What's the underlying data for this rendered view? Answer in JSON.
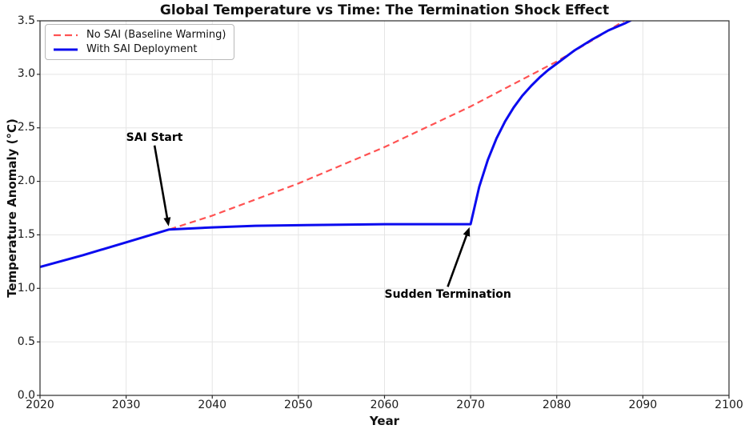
{
  "chart_data": {
    "type": "line",
    "title": "Global Temperature vs Time: The Termination Shock Effect",
    "xlabel": "Year",
    "ylabel": "Temperature Anomaly (°C)",
    "xlim": [
      2020,
      2100
    ],
    "ylim": [
      0.0,
      3.5
    ],
    "xticks": [
      2020,
      2030,
      2040,
      2050,
      2060,
      2070,
      2080,
      2090,
      2100
    ],
    "xtick_labels": [
      "2020",
      "2030",
      "2040",
      "2050",
      "2060",
      "2070",
      "2080",
      "2090",
      "2100"
    ],
    "yticks": [
      0.0,
      0.5,
      1.0,
      1.5,
      2.0,
      2.5,
      3.0,
      3.5
    ],
    "ytick_labels": [
      "0.0",
      "0.5",
      "1.0",
      "1.5",
      "2.0",
      "2.5",
      "3.0",
      "3.5"
    ],
    "grid": true,
    "legend_position": "upper-left",
    "series": [
      {
        "name": "No SAI (Baseline Warming)",
        "color": "#ff5252",
        "style": "dashed",
        "line_width": 2.2,
        "points": [
          [
            2020,
            1.2
          ],
          [
            2025,
            1.31
          ],
          [
            2030,
            1.43
          ],
          [
            2035,
            1.55
          ],
          [
            2040,
            1.68
          ],
          [
            2045,
            1.83
          ],
          [
            2050,
            1.98
          ],
          [
            2055,
            2.15
          ],
          [
            2060,
            2.32
          ],
          [
            2065,
            2.51
          ],
          [
            2070,
            2.7
          ],
          [
            2075,
            2.91
          ],
          [
            2080,
            3.12
          ],
          [
            2085,
            3.36
          ],
          [
            2088,
            3.51
          ],
          [
            2090,
            3.62
          ]
        ]
      },
      {
        "name": "With SAI Deployment",
        "color": "#0b0bef",
        "style": "solid",
        "line_width": 3,
        "points": [
          [
            2020,
            1.2
          ],
          [
            2025,
            1.31
          ],
          [
            2030,
            1.43
          ],
          [
            2035,
            1.55
          ],
          [
            2040,
            1.57
          ],
          [
            2045,
            1.585
          ],
          [
            2050,
            1.59
          ],
          [
            2055,
            1.595
          ],
          [
            2060,
            1.6
          ],
          [
            2065,
            1.6
          ],
          [
            2070,
            1.6
          ],
          [
            2071,
            1.95
          ],
          [
            2072,
            2.2
          ],
          [
            2073,
            2.4
          ],
          [
            2074,
            2.56
          ],
          [
            2075,
            2.69
          ],
          [
            2076,
            2.8
          ],
          [
            2077,
            2.89
          ],
          [
            2078,
            2.97
          ],
          [
            2079,
            3.04
          ],
          [
            2080,
            3.1
          ],
          [
            2082,
            3.22
          ],
          [
            2084,
            3.32
          ],
          [
            2086,
            3.41
          ],
          [
            2088,
            3.48
          ],
          [
            2089,
            3.52
          ],
          [
            2091,
            3.62
          ]
        ]
      }
    ],
    "annotations": [
      {
        "label": "SAI Start",
        "point_xy": [
          2035,
          1.55
        ],
        "text_xy": [
          2030,
          2.35
        ]
      },
      {
        "label": "Sudden Termination",
        "point_xy": [
          2070,
          1.6
        ],
        "text_xy": [
          2060,
          0.88
        ]
      }
    ],
    "colors": {
      "grid": "#e5e5e5",
      "spine": "#2b2b2b",
      "tick": "#2b2b2b",
      "annotation_arrow": "#000000",
      "background": "#ffffff"
    }
  }
}
